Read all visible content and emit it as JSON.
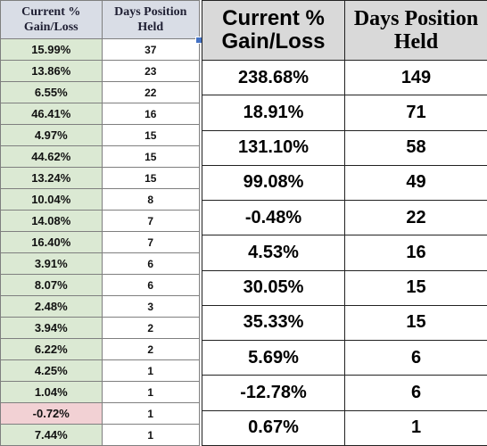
{
  "left_table": {
    "headers": [
      "Current % Gain/Loss",
      "Days Position Held"
    ],
    "rows": [
      {
        "gain": "15.99%",
        "days": "37",
        "negative": false
      },
      {
        "gain": "13.86%",
        "days": "23",
        "negative": false
      },
      {
        "gain": "6.55%",
        "days": "22",
        "negative": false
      },
      {
        "gain": "46.41%",
        "days": "16",
        "negative": false
      },
      {
        "gain": "4.97%",
        "days": "15",
        "negative": false
      },
      {
        "gain": "44.62%",
        "days": "15",
        "negative": false
      },
      {
        "gain": "13.24%",
        "days": "15",
        "negative": false
      },
      {
        "gain": "10.04%",
        "days": "8",
        "negative": false
      },
      {
        "gain": "14.08%",
        "days": "7",
        "negative": false
      },
      {
        "gain": "16.40%",
        "days": "7",
        "negative": false
      },
      {
        "gain": "3.91%",
        "days": "6",
        "negative": false
      },
      {
        "gain": "8.07%",
        "days": "6",
        "negative": false
      },
      {
        "gain": "2.48%",
        "days": "3",
        "negative": false
      },
      {
        "gain": "3.94%",
        "days": "2",
        "negative": false
      },
      {
        "gain": "6.22%",
        "days": "2",
        "negative": false
      },
      {
        "gain": "4.25%",
        "days": "1",
        "negative": false
      },
      {
        "gain": "1.04%",
        "days": "1",
        "negative": false
      },
      {
        "gain": "-0.72%",
        "days": "1",
        "negative": true
      },
      {
        "gain": "7.44%",
        "days": "1",
        "negative": false
      }
    ]
  },
  "right_table": {
    "headers": [
      "Current % Gain/Loss",
      "Days Position Held"
    ],
    "rows": [
      {
        "gain": "238.68%",
        "days": "149"
      },
      {
        "gain": "18.91%",
        "days": "71"
      },
      {
        "gain": "131.10%",
        "days": "58"
      },
      {
        "gain": "99.08%",
        "days": "49"
      },
      {
        "gain": "-0.48%",
        "days": "22"
      },
      {
        "gain": "4.53%",
        "days": "16"
      },
      {
        "gain": "30.05%",
        "days": "15"
      },
      {
        "gain": "35.33%",
        "days": "15"
      },
      {
        "gain": "5.69%",
        "days": "6"
      },
      {
        "gain": "-12.78%",
        "days": "6"
      },
      {
        "gain": "0.67%",
        "days": "1"
      }
    ]
  },
  "colors": {
    "gain_fill": "#dbe9d3",
    "loss_fill": "#f2d1d4",
    "left_header_fill": "#d9dde6",
    "right_header_fill": "#d9d9d9",
    "selection_handle": "#4472c4"
  }
}
